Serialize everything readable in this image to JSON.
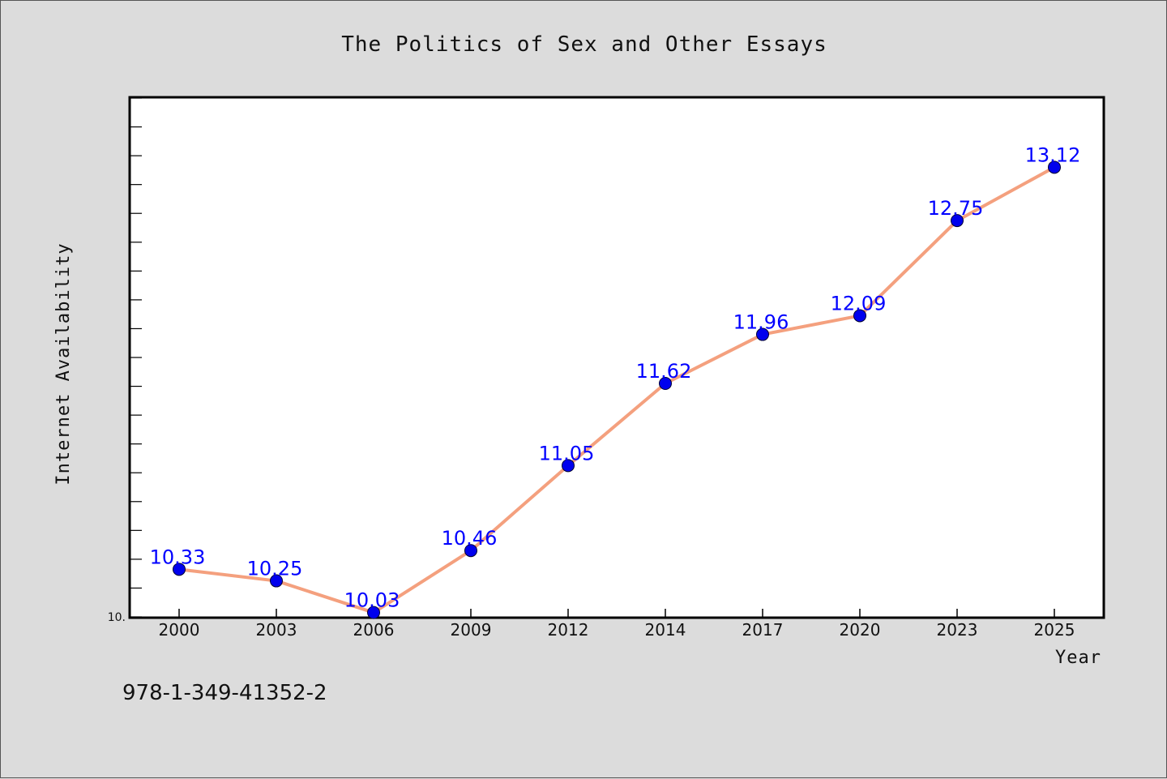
{
  "chart_data": {
    "type": "line",
    "title": "The Politics of Sex and Other Essays",
    "xlabel": "Year",
    "ylabel": "Internet Availability",
    "categories": [
      "2000",
      "2003",
      "2006",
      "2009",
      "2012",
      "2014",
      "2017",
      "2020",
      "2023",
      "2025"
    ],
    "series": [
      {
        "values": [
          10.33,
          10.25,
          10.03,
          10.46,
          11.05,
          11.62,
          11.96,
          12.09,
          12.75,
          13.12
        ],
        "labels": [
          "10.33",
          "10.25",
          "10.03",
          "10.46",
          "11.05",
          "11.62",
          "11.96",
          "12.09",
          "12.75",
          "13.12"
        ]
      }
    ],
    "ylim": [
      10.0,
      13.6
    ],
    "y_tick_labels": [
      {
        "value": 10.0,
        "label": "10."
      }
    ],
    "grid": false,
    "legend": "none",
    "colors": {
      "line": "#f4a07e",
      "marker": "#0000ee",
      "data_label": "#0000ff"
    }
  },
  "footer": {
    "isbn": "978-1-349-41352-2"
  }
}
